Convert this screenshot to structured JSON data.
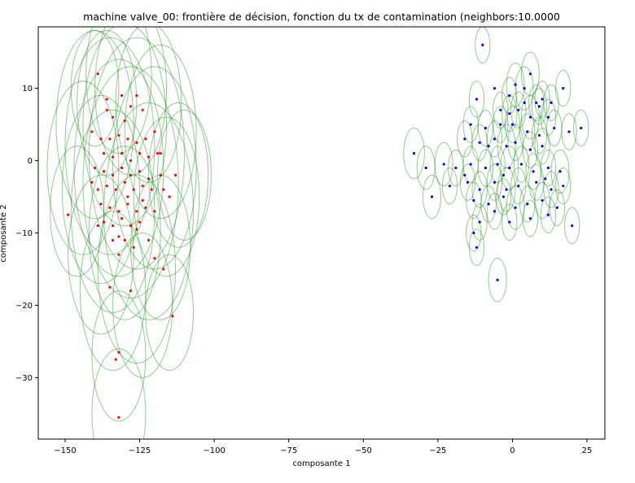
{
  "chart_data": {
    "type": "scatter",
    "title": "machine valve_00: frontière de décision, fonction du tx de contamination (neighbors:10.0000",
    "xlabel": "composante 1",
    "ylabel": "composante 2",
    "xlim": [
      -159,
      31
    ],
    "ylim": [
      -38.5,
      18.5
    ],
    "x_ticks": [
      -150,
      -125,
      -100,
      -75,
      -50,
      -25,
      0,
      25
    ],
    "x_tick_labels": [
      "−150",
      "−125",
      "−100",
      "−75",
      "−50",
      "−25",
      "0",
      "25"
    ],
    "y_ticks": [
      -30,
      -20,
      -10,
      0,
      10
    ],
    "y_tick_labels": [
      "−30",
      "−20",
      "−10",
      "0",
      "10"
    ],
    "grid": false,
    "legend": "none",
    "colors": {
      "anomaly": "#ff0000",
      "normal": "#0000ff",
      "circle": "#008000"
    },
    "series": [
      {
        "points": [
          [
            -139,
            12
          ],
          [
            -136,
            8.5
          ],
          [
            -136,
            7
          ],
          [
            -131,
            9
          ],
          [
            -128,
            7.5
          ],
          [
            -126,
            9
          ],
          [
            -134,
            6
          ],
          [
            -124,
            7
          ],
          [
            -130,
            5.5
          ],
          [
            -141,
            4
          ],
          [
            -138,
            3
          ],
          [
            -135,
            3
          ],
          [
            -132,
            3.5
          ],
          [
            -129,
            3
          ],
          [
            -126,
            2.5
          ],
          [
            -123,
            3
          ],
          [
            -120,
            4
          ],
          [
            -137,
            1
          ],
          [
            -134,
            0.5
          ],
          [
            -131,
            1
          ],
          [
            -128,
            0
          ],
          [
            -125,
            1
          ],
          [
            -122,
            0.5
          ],
          [
            -119,
            1
          ],
          [
            -140,
            -1
          ],
          [
            -137,
            -1.5
          ],
          [
            -134,
            -2
          ],
          [
            -131,
            -1
          ],
          [
            -128,
            -2
          ],
          [
            -125,
            -1.5
          ],
          [
            -122,
            -2.5
          ],
          [
            -118,
            -2
          ],
          [
            -113,
            -2
          ],
          [
            -139,
            -4
          ],
          [
            -136,
            -3.5
          ],
          [
            -133,
            -4
          ],
          [
            -130,
            -3
          ],
          [
            -127,
            -4
          ],
          [
            -124,
            -3.5
          ],
          [
            -121,
            -4
          ],
          [
            -117,
            -4
          ],
          [
            -115,
            -5
          ],
          [
            -138,
            -6
          ],
          [
            -135,
            -6.5
          ],
          [
            -132,
            -7
          ],
          [
            -129,
            -6
          ],
          [
            -126,
            -7
          ],
          [
            -123,
            -6.5
          ],
          [
            -120,
            -7
          ],
          [
            -149,
            -7.5
          ],
          [
            -137,
            -8.5
          ],
          [
            -134,
            -9
          ],
          [
            -131,
            -8
          ],
          [
            -128,
            -9
          ],
          [
            -125,
            -8.5
          ],
          [
            -134,
            -11
          ],
          [
            -132,
            -10.5
          ],
          [
            -130,
            -11
          ],
          [
            -127,
            -12
          ],
          [
            -122,
            -11
          ],
          [
            -132,
            -13
          ],
          [
            -120,
            -13.5
          ],
          [
            -117,
            -15
          ],
          [
            -135,
            -17.5
          ],
          [
            -128,
            -18
          ],
          [
            -114,
            -21.5
          ],
          [
            -132,
            -26.5
          ],
          [
            -133,
            -27.5
          ],
          [
            -132,
            -35.5
          ],
          [
            -141,
            -3
          ],
          [
            -118,
            1
          ],
          [
            -126,
            -9.5
          ],
          [
            -139,
            -9
          ],
          [
            -124,
            -5.5
          ],
          [
            -129,
            -5
          ]
        ],
        "color": "#ff0000"
      },
      {
        "points": [
          [
            -10,
            16
          ],
          [
            6,
            12
          ],
          [
            -12,
            8.5
          ],
          [
            -1,
            9
          ],
          [
            1,
            10.5
          ],
          [
            4,
            10
          ],
          [
            8,
            8
          ],
          [
            17,
            10
          ],
          [
            10,
            8.5
          ],
          [
            13,
            8
          ],
          [
            -4,
            7
          ],
          [
            -1,
            6.5
          ],
          [
            2,
            7
          ],
          [
            6,
            6
          ],
          [
            9,
            7.5
          ],
          [
            12,
            6
          ],
          [
            -14,
            5
          ],
          [
            -9,
            4.5
          ],
          [
            -4,
            5
          ],
          [
            0,
            5
          ],
          [
            5,
            4
          ],
          [
            9,
            3.5
          ],
          [
            14,
            4.5
          ],
          [
            19,
            4
          ],
          [
            23,
            4.5
          ],
          [
            -33,
            1
          ],
          [
            -16,
            3
          ],
          [
            -11,
            2.5
          ],
          [
            -6,
            3
          ],
          [
            -2,
            2
          ],
          [
            1,
            2.5
          ],
          [
            6,
            1.5
          ],
          [
            10,
            2
          ],
          [
            -29,
            -1
          ],
          [
            -23,
            -0.5
          ],
          [
            -19,
            -1
          ],
          [
            -14,
            -0.5
          ],
          [
            -9,
            -1
          ],
          [
            -5,
            -0.5
          ],
          [
            -1,
            -1
          ],
          [
            3,
            -0.5
          ],
          [
            7,
            -1.5
          ],
          [
            12,
            -1
          ],
          [
            16,
            -1.5
          ],
          [
            -21,
            -3.5
          ],
          [
            -15,
            -3
          ],
          [
            -11,
            -4
          ],
          [
            -6,
            -3
          ],
          [
            -2,
            -4
          ],
          [
            2,
            -3.5
          ],
          [
            8,
            -3
          ],
          [
            13,
            -4
          ],
          [
            17,
            -3.5
          ],
          [
            -27,
            -5
          ],
          [
            -13,
            -5.5
          ],
          [
            -8,
            -6
          ],
          [
            -3,
            -5
          ],
          [
            1,
            -6.5
          ],
          [
            5,
            -6
          ],
          [
            10,
            -5.5
          ],
          [
            15,
            -6.5
          ],
          [
            -11,
            -8.5
          ],
          [
            -6,
            -7
          ],
          [
            -1,
            -8.5
          ],
          [
            6,
            -8
          ],
          [
            12,
            -7.5
          ],
          [
            20,
            -9
          ],
          [
            -13,
            -10
          ],
          [
            -12,
            -12
          ],
          [
            -5,
            -16.5
          ],
          [
            -16,
            -2
          ],
          [
            -3,
            -2
          ],
          [
            11,
            -2.5
          ],
          [
            -8,
            2
          ],
          [
            4,
            8
          ],
          [
            -6,
            10
          ]
        ],
        "color": "#0000ff"
      }
    ],
    "circles": [
      [
        -132,
        12,
        11
      ],
      [
        -128,
        10,
        12
      ],
      [
        -136,
        8,
        10
      ],
      [
        -122,
        8,
        11
      ],
      [
        -140,
        5,
        13
      ],
      [
        -130,
        5,
        14
      ],
      [
        -118,
        4,
        12
      ],
      [
        -135,
        2,
        15
      ],
      [
        -126,
        1,
        16
      ],
      [
        -112,
        -2,
        10
      ],
      [
        -144,
        -1,
        12
      ],
      [
        -132,
        -1,
        15
      ],
      [
        -120,
        -1,
        14
      ],
      [
        -138,
        -4,
        13
      ],
      [
        -128,
        -3,
        16
      ],
      [
        -116,
        -5,
        11
      ],
      [
        -146,
        -7,
        9
      ],
      [
        -134,
        -7,
        14
      ],
      [
        -122,
        -7,
        15
      ],
      [
        -130,
        -10,
        12
      ],
      [
        -118,
        -12,
        10
      ],
      [
        -138,
        -13,
        11
      ],
      [
        -126,
        -15,
        13
      ],
      [
        -134,
        -18,
        11
      ],
      [
        -115,
        -21,
        8
      ],
      [
        -132,
        -27,
        9
      ],
      [
        -132,
        -35,
        9
      ],
      [
        -110,
        -2,
        9
      ],
      [
        -140,
        10,
        8
      ],
      [
        -124,
        -20,
        10
      ],
      [
        -10,
        16,
        2.5
      ],
      [
        6,
        12,
        3
      ],
      [
        -12,
        8.5,
        2.5
      ],
      [
        -1,
        9,
        2.5
      ],
      [
        1,
        10.5,
        3
      ],
      [
        4,
        10,
        3
      ],
      [
        8,
        8,
        2.5
      ],
      [
        17,
        10,
        2.5
      ],
      [
        10,
        8.5,
        2.5
      ],
      [
        13,
        8,
        2.5
      ],
      [
        -4,
        7,
        2.5
      ],
      [
        -1,
        6.5,
        2.5
      ],
      [
        2,
        7,
        2.5
      ],
      [
        6,
        6,
        3
      ],
      [
        9,
        7.5,
        2.5
      ],
      [
        12,
        6,
        2.5
      ],
      [
        -14,
        5,
        2.5
      ],
      [
        -9,
        4.5,
        2.5
      ],
      [
        -4,
        5,
        2.5
      ],
      [
        0,
        5,
        2.5
      ],
      [
        5,
        4,
        2.5
      ],
      [
        9,
        3.5,
        2.5
      ],
      [
        14,
        4.5,
        2.5
      ],
      [
        19,
        4,
        2.5
      ],
      [
        23,
        4.5,
        2.5
      ],
      [
        -33,
        1,
        3.5
      ],
      [
        -16,
        3,
        2.5
      ],
      [
        -11,
        2.5,
        2.5
      ],
      [
        -6,
        3,
        2.5
      ],
      [
        -2,
        2,
        3
      ],
      [
        1,
        2.5,
        2.5
      ],
      [
        6,
        1.5,
        2.5
      ],
      [
        10,
        2,
        2.5
      ],
      [
        -29,
        -1,
        3
      ],
      [
        -23,
        -0.5,
        3
      ],
      [
        -19,
        -1,
        2.5
      ],
      [
        -14,
        -0.5,
        2.5
      ],
      [
        -9,
        -1,
        2.5
      ],
      [
        -5,
        -0.5,
        2.5
      ],
      [
        -1,
        -1,
        3
      ],
      [
        3,
        -0.5,
        2.5
      ],
      [
        7,
        -1.5,
        2.5
      ],
      [
        12,
        -1,
        2.5
      ],
      [
        16,
        -1.5,
        3
      ],
      [
        -21,
        -3.5,
        2.5
      ],
      [
        -15,
        -3,
        2.5
      ],
      [
        -11,
        -4,
        2.5
      ],
      [
        -6,
        -3,
        2.5
      ],
      [
        -2,
        -4,
        3
      ],
      [
        2,
        -3.5,
        2.5
      ],
      [
        8,
        -3,
        2.5
      ],
      [
        13,
        -4,
        2.5
      ],
      [
        17,
        -3.5,
        2.5
      ],
      [
        -27,
        -5,
        3
      ],
      [
        -13,
        -5.5,
        2.5
      ],
      [
        -8,
        -6,
        2.5
      ],
      [
        -3,
        -5,
        2.5
      ],
      [
        1,
        -6.5,
        3
      ],
      [
        5,
        -6,
        2.5
      ],
      [
        10,
        -5.5,
        2.5
      ],
      [
        15,
        -6.5,
        2.5
      ],
      [
        -11,
        -8.5,
        2.5
      ],
      [
        -6,
        -7,
        2.5
      ],
      [
        -1,
        -8.5,
        2.5
      ],
      [
        6,
        -8,
        2.5
      ],
      [
        12,
        -7.5,
        2.5
      ],
      [
        20,
        -9,
        2.5
      ],
      [
        -13,
        -10,
        2.5
      ],
      [
        -12,
        -12,
        2.5
      ],
      [
        -5,
        -16.5,
        3
      ]
    ]
  }
}
